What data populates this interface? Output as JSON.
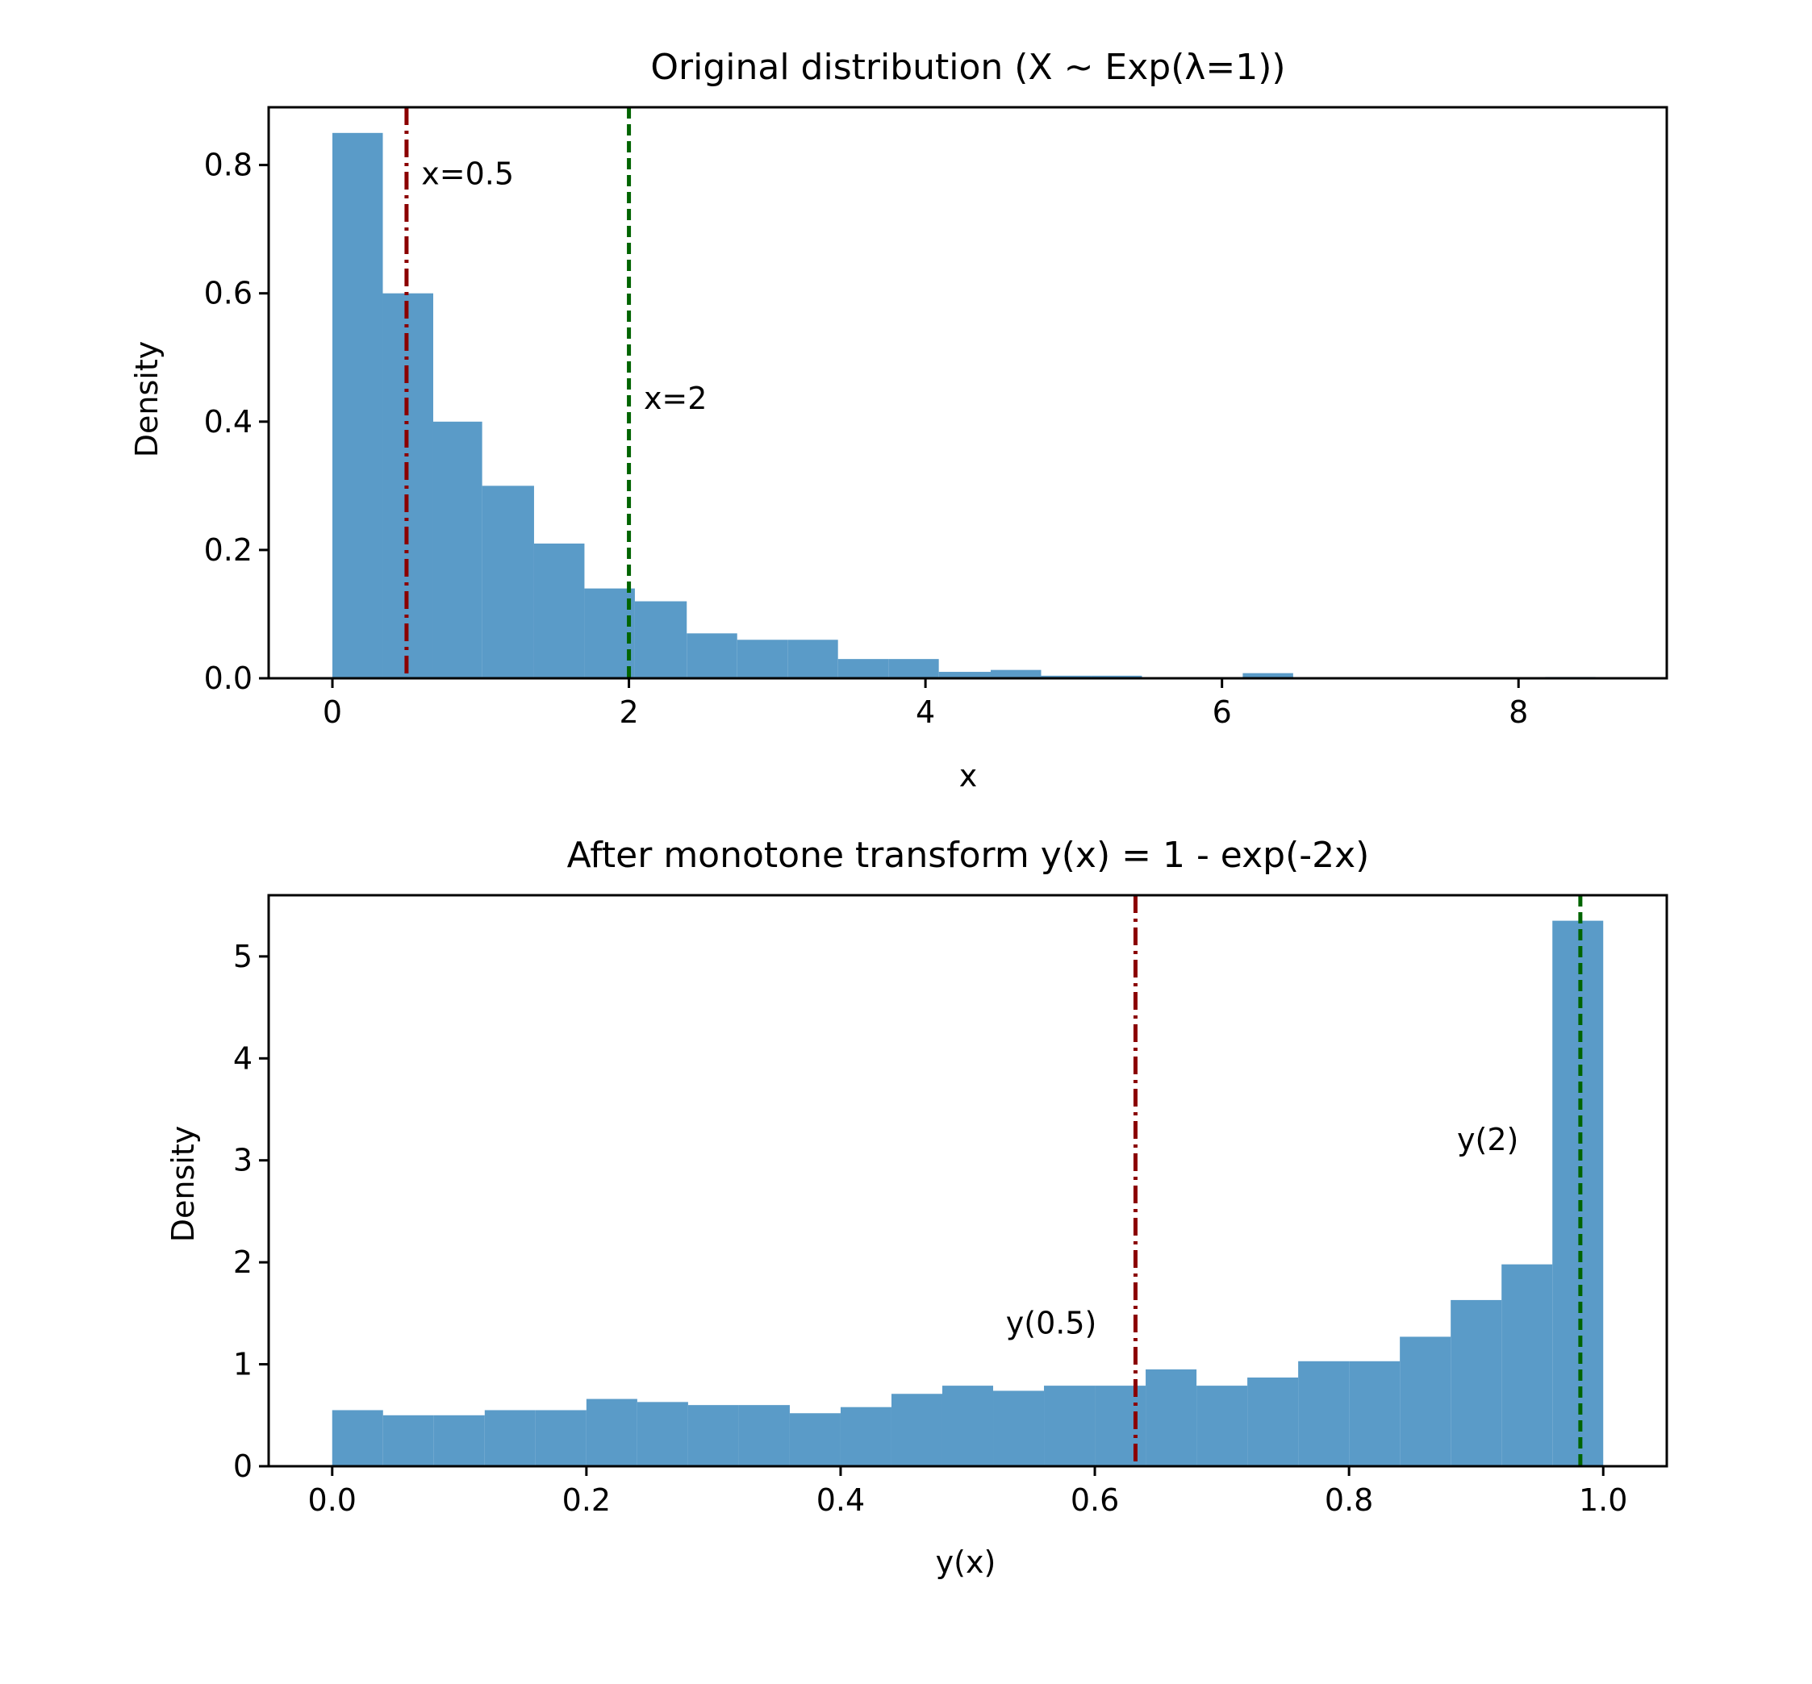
{
  "chart_data": [
    {
      "type": "histogram",
      "title": "Original distribution (X ~ Exp(λ=1))",
      "xlabel": "x",
      "ylabel": "Density",
      "xlim": [
        -0.43,
        9.0
      ],
      "ylim": [
        0,
        0.89
      ],
      "xticks": [
        0,
        2,
        4,
        6,
        8
      ],
      "xtick_labels": [
        "0",
        "2",
        "4",
        "6",
        "8"
      ],
      "yticks": [
        0.0,
        0.2,
        0.4,
        0.6,
        0.8
      ],
      "ytick_labels": [
        "0.0",
        "0.2",
        "0.4",
        "0.6",
        "0.8"
      ],
      "bar_color": "#5a9bc8",
      "bins": [
        {
          "x0": 0.0,
          "x1": 0.34,
          "density": 0.85
        },
        {
          "x0": 0.34,
          "x1": 0.68,
          "density": 0.6
        },
        {
          "x0": 0.68,
          "x1": 1.01,
          "density": 0.4
        },
        {
          "x0": 1.01,
          "x1": 1.36,
          "density": 0.3
        },
        {
          "x0": 1.36,
          "x1": 1.7,
          "density": 0.21
        },
        {
          "x0": 1.7,
          "x1": 2.04,
          "density": 0.14
        },
        {
          "x0": 2.04,
          "x1": 2.39,
          "density": 0.12
        },
        {
          "x0": 2.39,
          "x1": 2.73,
          "density": 0.07
        },
        {
          "x0": 2.73,
          "x1": 3.07,
          "density": 0.06
        },
        {
          "x0": 3.07,
          "x1": 3.41,
          "density": 0.06
        },
        {
          "x0": 3.41,
          "x1": 3.75,
          "density": 0.03
        },
        {
          "x0": 3.75,
          "x1": 4.09,
          "density": 0.03
        },
        {
          "x0": 4.09,
          "x1": 4.44,
          "density": 0.01
        },
        {
          "x0": 4.44,
          "x1": 4.78,
          "density": 0.013
        },
        {
          "x0": 4.78,
          "x1": 5.12,
          "density": 0.004
        },
        {
          "x0": 5.12,
          "x1": 5.46,
          "density": 0.004
        },
        {
          "x0": 5.46,
          "x1": 5.8,
          "density": 0.0
        },
        {
          "x0": 5.8,
          "x1": 6.14,
          "density": 0.0
        },
        {
          "x0": 6.14,
          "x1": 6.48,
          "density": 0.008
        },
        {
          "x0": 6.48,
          "x1": 6.82,
          "density": 0.0
        },
        {
          "x0": 6.82,
          "x1": 7.16,
          "density": 0.0
        },
        {
          "x0": 7.16,
          "x1": 7.5,
          "density": 0.0
        },
        {
          "x0": 7.5,
          "x1": 7.84,
          "density": 0.0
        },
        {
          "x0": 7.84,
          "x1": 8.18,
          "density": 0.0
        },
        {
          "x0": 8.18,
          "x1": 8.52,
          "density": 0.002
        }
      ],
      "reference_lines": [
        {
          "x": 0.5,
          "style": "dashdot",
          "color": "#8b0000",
          "label": "x=0.5",
          "label_x": 0.6,
          "label_y": 0.77
        },
        {
          "x": 2.0,
          "style": "dashed",
          "color": "#006400",
          "label": "x=2",
          "label_x": 2.1,
          "label_y": 0.42
        }
      ]
    },
    {
      "type": "histogram",
      "title": "After monotone transform y(x) = 1 - exp(-2x)",
      "xlabel": "y(x)",
      "ylabel": "Density",
      "xlim": [
        -0.05,
        1.05
      ],
      "ylim": [
        0,
        5.6
      ],
      "xticks": [
        0.0,
        0.2,
        0.4,
        0.6,
        0.8,
        1.0
      ],
      "xtick_labels": [
        "0.0",
        "0.2",
        "0.4",
        "0.6",
        "0.8",
        "1.0"
      ],
      "yticks": [
        0,
        1,
        2,
        3,
        4,
        5
      ],
      "ytick_labels": [
        "0",
        "1",
        "2",
        "3",
        "4",
        "5"
      ],
      "bar_color": "#5a9bc8",
      "bins": [
        {
          "x0": 0.0,
          "x1": 0.04,
          "density": 0.55
        },
        {
          "x0": 0.04,
          "x1": 0.08,
          "density": 0.5
        },
        {
          "x0": 0.08,
          "x1": 0.12,
          "density": 0.5
        },
        {
          "x0": 0.12,
          "x1": 0.16,
          "density": 0.55
        },
        {
          "x0": 0.16,
          "x1": 0.2,
          "density": 0.55
        },
        {
          "x0": 0.2,
          "x1": 0.24,
          "density": 0.66
        },
        {
          "x0": 0.24,
          "x1": 0.28,
          "density": 0.63
        },
        {
          "x0": 0.28,
          "x1": 0.32,
          "density": 0.6
        },
        {
          "x0": 0.32,
          "x1": 0.36,
          "density": 0.6
        },
        {
          "x0": 0.36,
          "x1": 0.4,
          "density": 0.52
        },
        {
          "x0": 0.4,
          "x1": 0.44,
          "density": 0.58
        },
        {
          "x0": 0.44,
          "x1": 0.48,
          "density": 0.71
        },
        {
          "x0": 0.48,
          "x1": 0.52,
          "density": 0.79
        },
        {
          "x0": 0.52,
          "x1": 0.56,
          "density": 0.74
        },
        {
          "x0": 0.56,
          "x1": 0.6,
          "density": 0.79
        },
        {
          "x0": 0.6,
          "x1": 0.64,
          "density": 0.79
        },
        {
          "x0": 0.64,
          "x1": 0.68,
          "density": 0.95
        },
        {
          "x0": 0.68,
          "x1": 0.72,
          "density": 0.79
        },
        {
          "x0": 0.72,
          "x1": 0.76,
          "density": 0.87
        },
        {
          "x0": 0.76,
          "x1": 0.8,
          "density": 1.03
        },
        {
          "x0": 0.8,
          "x1": 0.84,
          "density": 1.03
        },
        {
          "x0": 0.84,
          "x1": 0.88,
          "density": 1.27
        },
        {
          "x0": 0.88,
          "x1": 0.92,
          "density": 1.63
        },
        {
          "x0": 0.92,
          "x1": 0.96,
          "density": 1.98
        },
        {
          "x0": 0.96,
          "x1": 1.0,
          "density": 5.35
        }
      ],
      "reference_lines": [
        {
          "x": 0.632,
          "style": "dashdot",
          "color": "#8b0000",
          "label": "y(0.5)",
          "label_x": 0.53,
          "label_y": 1.3
        },
        {
          "x": 0.982,
          "style": "dashed",
          "color": "#006400",
          "label": "y(2)",
          "label_x": 0.885,
          "label_y": 3.1
        }
      ]
    }
  ]
}
